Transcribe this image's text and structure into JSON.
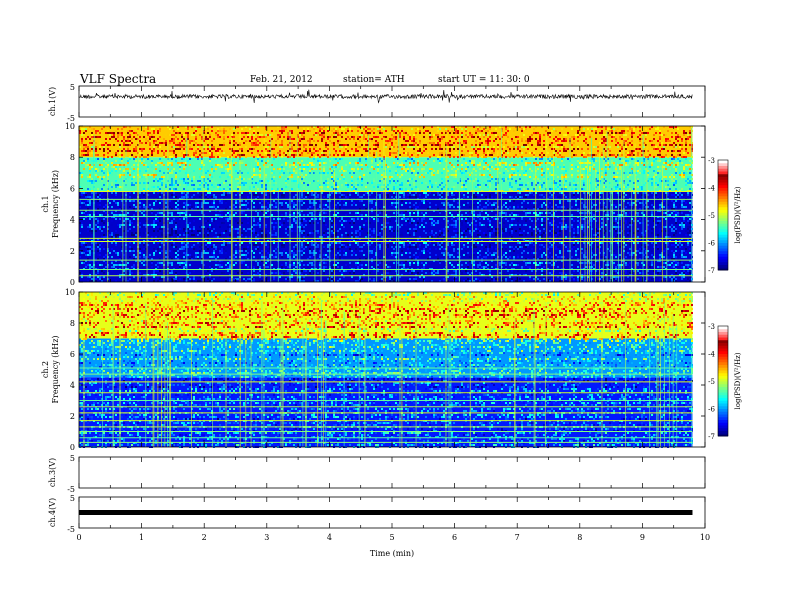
{
  "header": {
    "title": "VLF  Spectra",
    "date": "Feb. 21, 2012",
    "station": "station= ATH",
    "start": "start  UT  =    11: 30: 0"
  },
  "chart_data": [
    {
      "type": "line",
      "panel": "ch1-waveform",
      "ylabel": "ch.1(V)",
      "ylim": [
        -5,
        5
      ],
      "yticks": [
        "5",
        "-5"
      ],
      "x": [
        0,
        1,
        2,
        3,
        4,
        5,
        6,
        7,
        8,
        9,
        9.8
      ],
      "series": [
        {
          "values": [
            1.6,
            1.6,
            1.6,
            1.7,
            1.6,
            1.6,
            1.6,
            1.6,
            1.6,
            1.6,
            1.6
          ]
        }
      ],
      "xlim": [
        0,
        10
      ]
    },
    {
      "type": "heatmap",
      "panel": "ch1-spectrogram",
      "ylabel": "ch.1\nFrequency  (kHz)",
      "ylim": [
        0,
        10
      ],
      "yticks": [
        "0",
        "2",
        "4",
        "6",
        "8",
        "10"
      ],
      "xlim": [
        0,
        10
      ],
      "data_extent_min": 9.8,
      "colorbar": {
        "label": "log(PSD)(V²/Hz)",
        "range": [
          -7,
          -3
        ],
        "ticks": [
          "-3",
          "-4",
          "-5",
          "-6",
          "-7"
        ]
      },
      "bands_kHz": [
        {
          "from": 0,
          "to": 5.8,
          "level": -6.7
        },
        {
          "from": 5.8,
          "to": 8.0,
          "level": -5.2
        },
        {
          "from": 8.0,
          "to": 10,
          "level": -4.3
        }
      ],
      "lines_kHz": [
        0.4,
        0.8,
        1.4,
        2.6,
        2.8,
        4.2,
        4.6,
        5.3,
        5.8
      ]
    },
    {
      "type": "heatmap",
      "panel": "ch2-spectrogram",
      "ylabel": "ch.2\nFrequency  (kHz)",
      "ylim": [
        0,
        10
      ],
      "yticks": [
        "0",
        "2",
        "4",
        "6",
        "8",
        "10"
      ],
      "xlim": [
        0,
        10
      ],
      "data_extent_min": 9.8,
      "colorbar": {
        "label": "log(PSD)(V²/Hz)",
        "range": [
          -7,
          -3
        ],
        "ticks": [
          "-3",
          "-4",
          "-5",
          "-6",
          "-7"
        ]
      },
      "bands_kHz": [
        {
          "from": 0,
          "to": 4.5,
          "level": -6.4
        },
        {
          "from": 4.5,
          "to": 7.0,
          "level": -5.9
        },
        {
          "from": 7.0,
          "to": 10,
          "level": -4.6
        }
      ],
      "lines_kHz": [
        0.3,
        0.6,
        1.0,
        1.3,
        1.7,
        2.2,
        2.6,
        3.0,
        3.5,
        4.2,
        4.7,
        5.1
      ]
    },
    {
      "type": "line",
      "panel": "ch3-waveform",
      "ylabel": "ch.3(V)",
      "ylim": [
        -5,
        5
      ],
      "yticks": [
        "5",
        "-5"
      ],
      "xlim": [
        0,
        10
      ]
    },
    {
      "type": "line",
      "panel": "ch4-waveform",
      "ylabel": "ch.4(V)",
      "ylim": [
        -5,
        5
      ],
      "yticks": [
        "5",
        "-5"
      ],
      "x": [
        0,
        9.8
      ],
      "series": [
        {
          "values": [
            0,
            0
          ]
        }
      ],
      "xlim": [
        0,
        10
      ],
      "xticks": [
        "0",
        "1",
        "2",
        "3",
        "4",
        "5",
        "6",
        "7",
        "8",
        "9",
        "10"
      ],
      "xlabel": "Time  (min)"
    }
  ]
}
